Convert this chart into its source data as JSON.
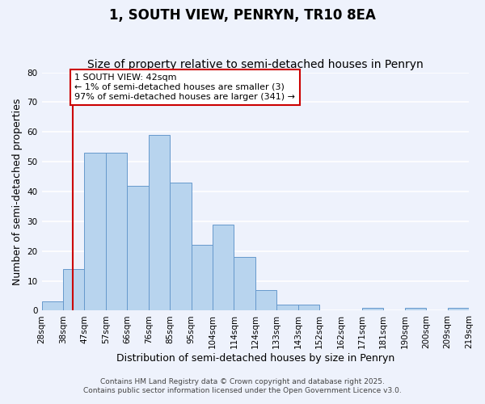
{
  "title": "1, SOUTH VIEW, PENRYN, TR10 8EA",
  "subtitle": "Size of property relative to semi-detached houses in Penryn",
  "xlabel": "Distribution of semi-detached houses by size in Penryn",
  "ylabel": "Number of semi-detached properties",
  "bins": [
    "28sqm",
    "38sqm",
    "47sqm",
    "57sqm",
    "66sqm",
    "76sqm",
    "85sqm",
    "95sqm",
    "104sqm",
    "114sqm",
    "124sqm",
    "133sqm",
    "143sqm",
    "152sqm",
    "162sqm",
    "171sqm",
    "181sqm",
    "190sqm",
    "200sqm",
    "209sqm",
    "219sqm"
  ],
  "counts": [
    3,
    14,
    53,
    53,
    42,
    59,
    43,
    22,
    29,
    18,
    7,
    2,
    2,
    0,
    0,
    1,
    0,
    1,
    0,
    1
  ],
  "bar_color": "#b8d4ee",
  "bar_edge_color": "#6699cc",
  "marker_color": "#cc0000",
  "ylim": [
    0,
    80
  ],
  "yticks": [
    0,
    10,
    20,
    30,
    40,
    50,
    60,
    70,
    80
  ],
  "annotation_title": "1 SOUTH VIEW: 42sqm",
  "annotation_line1": "← 1% of semi-detached houses are smaller (3)",
  "annotation_line2": "97% of semi-detached houses are larger (341) →",
  "footnote1": "Contains HM Land Registry data © Crown copyright and database right 2025.",
  "footnote2": "Contains public sector information licensed under the Open Government Licence v3.0.",
  "background_color": "#eef2fc",
  "grid_color": "#ffffff",
  "title_fontsize": 12,
  "subtitle_fontsize": 10,
  "axis_label_fontsize": 9,
  "tick_fontsize": 7.5,
  "annotation_fontsize": 8,
  "footnote_fontsize": 6.5,
  "bin_values": [
    28,
    38,
    47,
    57,
    66,
    76,
    85,
    95,
    104,
    114,
    124,
    133,
    143,
    152,
    162,
    171,
    181,
    190,
    200,
    209,
    219
  ],
  "marker_sqm": 42
}
